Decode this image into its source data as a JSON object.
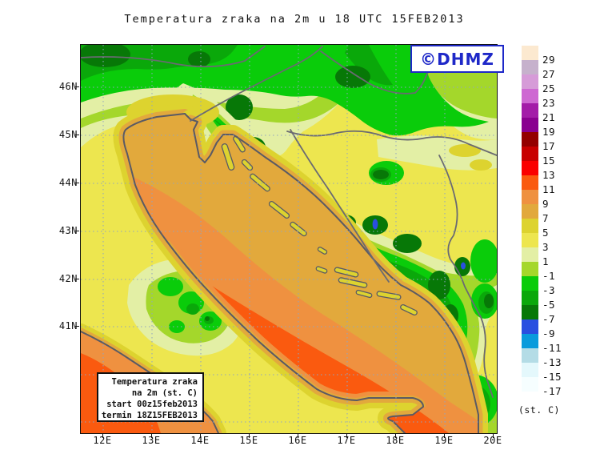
{
  "page": {
    "title": "Temperatura zraka na 2m u 18 UTC 15FEB2013",
    "background": "#FFFFFF"
  },
  "logo": {
    "label": "©DHMZ",
    "color": "#1E28C8"
  },
  "info_box": {
    "line1": "Temperatura zraka",
    "line2": "na 2m (st. C)",
    "line3": "start 00z15feb2013",
    "line4": "termin 18Z15FEB2013"
  },
  "map_frame": {
    "x_tick_labels": [
      "12E",
      "13E",
      "14E",
      "15E",
      "16E",
      "17E",
      "18E",
      "19E",
      "20E"
    ],
    "y_tick_labels": [
      "46N",
      "45N",
      "44N",
      "43N",
      "42N",
      "41N"
    ]
  },
  "colorbar": {
    "unit_label": "(st. C)",
    "tick_labels": [
      "29",
      "27",
      "25",
      "23",
      "21",
      "19",
      "17",
      "15",
      "13",
      "11",
      "9",
      "7",
      "5",
      "3",
      "1",
      "-1",
      "-3",
      "-5",
      "-7",
      "-9",
      "-11",
      "-13",
      "-15",
      "-17"
    ],
    "cell_colors_top_to_bottom": [
      "#FCE9D0",
      "#C6B1CC",
      "#D69BD8",
      "#CE68D2",
      "#A31CA8",
      "#8A0090",
      "#940000",
      "#C80000",
      "#FA0000",
      "#FA5A0F",
      "#EF9140",
      "#E2A93C",
      "#DDD32F",
      "#EDE64F",
      "#E3EFA5",
      "#A4D72B",
      "#0ACC0A",
      "#0AA80A",
      "#077807",
      "#2A4FE0",
      "#0A9BDC",
      "#B4DCE6",
      "#E4F8FC",
      "#F6FEFF",
      "#FFFFFF"
    ]
  },
  "map_colors": {
    "land_base": "#EDE64F",
    "pale_band": "#E3EFA5",
    "yellow_green": "#A4D72B",
    "bright_green": "#0ACC0A",
    "green": "#0AA80A",
    "dark_green": "#077807",
    "cold_spot_blue": "#2A4FE0",
    "coastal_gold": "#DDD32F",
    "coastal_amber": "#E2A93C",
    "sea_north": "#E2A93C",
    "sea_mid": "#EF9140",
    "sea_south": "#FA5A0F",
    "coastline": "#5A5A64",
    "borders": "#6A6A72",
    "gridlines": "#90A4C0"
  }
}
